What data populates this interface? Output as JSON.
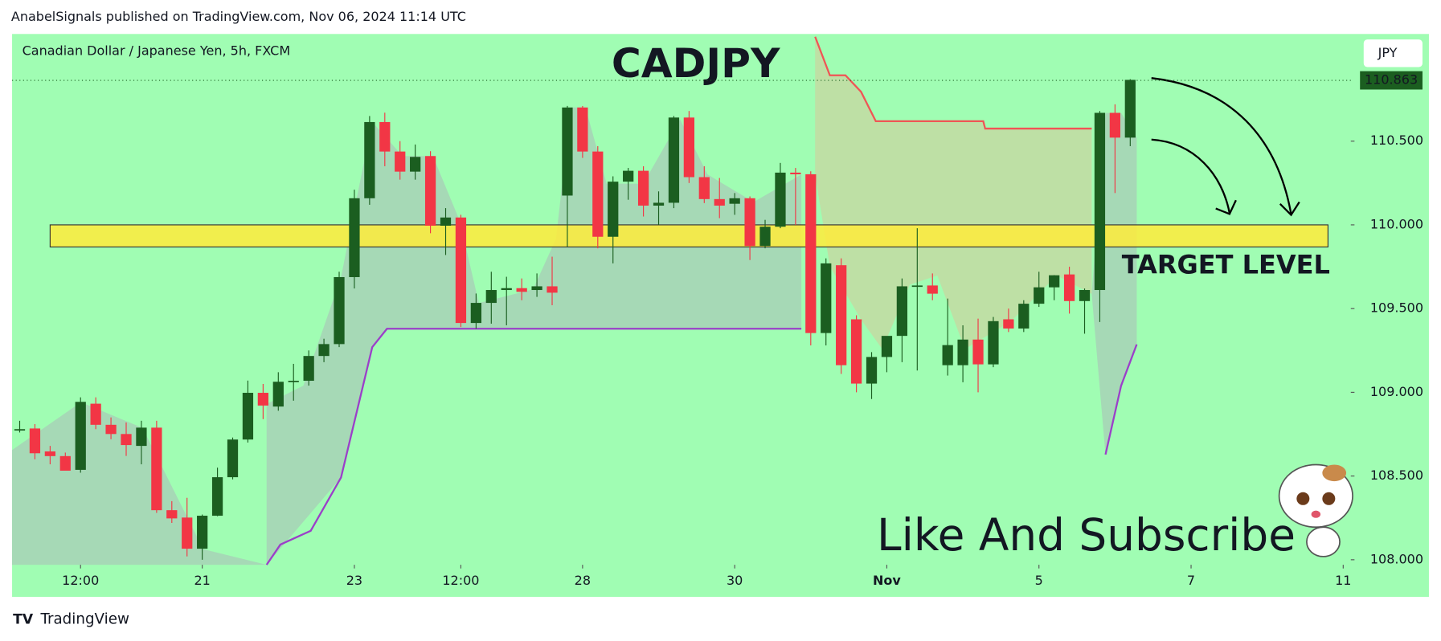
{
  "header": "AnabelSignals published on TradingView.com, Nov 06, 2024 11:14 UTC",
  "footer": "TradingView",
  "chart_data": {
    "type": "candlestick",
    "symbol": "Canadian Dollar / Japanese Yen, 5h, FXCM",
    "title": "CADJPY",
    "currency": "JPY",
    "annotations": [
      "TARGET LEVEL",
      "Like And Subscribe"
    ],
    "up_color": "#1b5e20",
    "down_color": "#f23645",
    "background": "#a0fdb3",
    "x": [
      0,
      1,
      2,
      3,
      4,
      5,
      6,
      7,
      8,
      9,
      10,
      11,
      12,
      13,
      14,
      15,
      16,
      17,
      18,
      19,
      20,
      21,
      22,
      23,
      24,
      25,
      26,
      27,
      28,
      29,
      30,
      31,
      32,
      33,
      34,
      35,
      36,
      37,
      38,
      39,
      40,
      41,
      42,
      43,
      44,
      45,
      46,
      47,
      48,
      49,
      50,
      51,
      52,
      53,
      54,
      55,
      56,
      57,
      58,
      59,
      60,
      61,
      62,
      63,
      64,
      65,
      66,
      67,
      68,
      69,
      70,
      71,
      72,
      73
    ],
    "open": [
      108.78,
      108.784,
      108.647,
      108.619,
      108.537,
      108.932,
      108.806,
      108.751,
      108.68,
      108.789,
      108.296,
      108.252,
      108.066,
      108.263,
      108.493,
      108.718,
      108.997,
      108.915,
      109.063,
      109.069,
      109.217,
      109.288,
      109.688,
      110.159,
      110.614,
      110.438,
      110.318,
      110.411,
      109.995,
      110.044,
      109.414,
      109.534,
      109.611,
      109.622,
      109.611,
      109.633,
      110.175,
      110.701,
      110.438,
      109.929,
      110.258,
      110.323,
      110.115,
      110.132,
      110.641,
      110.285,
      110.154,
      110.126,
      110.159,
      109.874,
      109.989,
      110.312,
      110.302,
      109.354,
      109.759,
      109.436,
      109.052,
      109.211,
      109.337,
      109.633,
      109.638,
      109.162,
      109.162,
      109.315,
      109.167,
      109.436,
      109.381,
      109.529,
      109.627,
      109.704,
      109.545,
      109.611,
      110.669,
      110.521
    ],
    "high": [
      108.83,
      108.81,
      108.68,
      108.64,
      108.97,
      108.97,
      108.85,
      108.82,
      108.83,
      108.83,
      108.35,
      108.37,
      108.27,
      108.55,
      108.73,
      109.07,
      109.05,
      109.12,
      109.17,
      109.25,
      109.32,
      109.72,
      110.21,
      110.65,
      110.67,
      110.5,
      110.48,
      110.44,
      110.1,
      110.06,
      109.59,
      109.72,
      109.69,
      109.68,
      109.71,
      109.81,
      110.71,
      110.71,
      110.47,
      110.29,
      110.34,
      110.35,
      110.2,
      110.65,
      110.68,
      110.35,
      110.28,
      110.19,
      110.17,
      110.03,
      110.37,
      110.34,
      110.32,
      109.8,
      109.8,
      109.46,
      109.24,
      109.33,
      109.68,
      109.98,
      109.71,
      109.56,
      109.4,
      109.44,
      109.45,
      109.5,
      109.55,
      109.72,
      109.7,
      109.75,
      109.62,
      110.68,
      110.72,
      110.87
    ],
    "low": [
      108.76,
      108.6,
      108.57,
      108.55,
      108.52,
      108.78,
      108.72,
      108.62,
      108.57,
      108.28,
      108.22,
      108.02,
      108.0,
      108.26,
      108.48,
      108.7,
      108.84,
      108.89,
      108.95,
      109.04,
      109.18,
      109.27,
      109.62,
      110.12,
      110.35,
      110.27,
      110.27,
      109.95,
      109.82,
      109.39,
      109.38,
      109.41,
      109.4,
      109.55,
      109.57,
      109.52,
      109.87,
      110.4,
      109.86,
      109.77,
      110.15,
      110.05,
      110.0,
      110.1,
      110.25,
      110.13,
      110.04,
      110.06,
      109.79,
      109.86,
      109.98,
      110.0,
      109.28,
      109.28,
      109.11,
      109.0,
      108.96,
      109.12,
      109.18,
      109.13,
      109.55,
      109.1,
      109.06,
      109.0,
      109.15,
      109.36,
      109.36,
      109.51,
      109.55,
      109.47,
      109.35,
      109.42,
      110.19,
      110.47
    ],
    "close": [
      108.78,
      108.636,
      108.619,
      108.532,
      108.943,
      108.806,
      108.751,
      108.685,
      108.789,
      108.296,
      108.247,
      108.066,
      108.263,
      108.493,
      108.718,
      108.997,
      108.921,
      109.063,
      109.069,
      109.217,
      109.288,
      109.688,
      110.159,
      110.614,
      110.438,
      110.318,
      110.406,
      109.995,
      110.044,
      109.414,
      109.534,
      109.611,
      109.622,
      109.6,
      109.633,
      109.595,
      110.701,
      110.438,
      109.929,
      110.258,
      110.323,
      110.115,
      110.132,
      110.641,
      110.285,
      110.154,
      110.115,
      110.159,
      109.874,
      109.989,
      110.312,
      110.302,
      109.354,
      109.77,
      109.162,
      109.052,
      109.211,
      109.337,
      109.633,
      109.638,
      109.589,
      109.282,
      109.315,
      109.167,
      109.425,
      109.381,
      109.529,
      109.627,
      109.699,
      109.545,
      109.611,
      110.669,
      110.521,
      110.866
    ],
    "last_price": 110.863,
    "target_zone": {
      "x": [
        2,
        86
      ],
      "y": [
        109.868,
        110.0
      ]
    },
    "xlim": [
      -0.5,
      87.5
    ],
    "xticks": [
      {
        "value": 4,
        "label": "12:00"
      },
      {
        "value": 12,
        "label": "21"
      },
      {
        "value": 22,
        "label": "23"
      },
      {
        "value": 29,
        "label": "12:00"
      },
      {
        "value": 37,
        "label": "28"
      },
      {
        "value": 47,
        "label": "30"
      },
      {
        "value": 57,
        "label": "Nov"
      },
      {
        "value": 67,
        "label": "5"
      },
      {
        "value": 77,
        "label": "7"
      },
      {
        "value": 87,
        "label": "11"
      }
    ],
    "ylim": [
      107.97,
      111.14
    ],
    "yticks": [
      {
        "value": 108,
        "label": "108.000"
      },
      {
        "value": 108.5,
        "label": "108.500"
      },
      {
        "value": 109,
        "label": "109.000"
      },
      {
        "value": 109.5,
        "label": "109.500"
      },
      {
        "value": 110,
        "label": "110.000"
      },
      {
        "value": 110.5,
        "label": "110.500"
      }
    ]
  }
}
